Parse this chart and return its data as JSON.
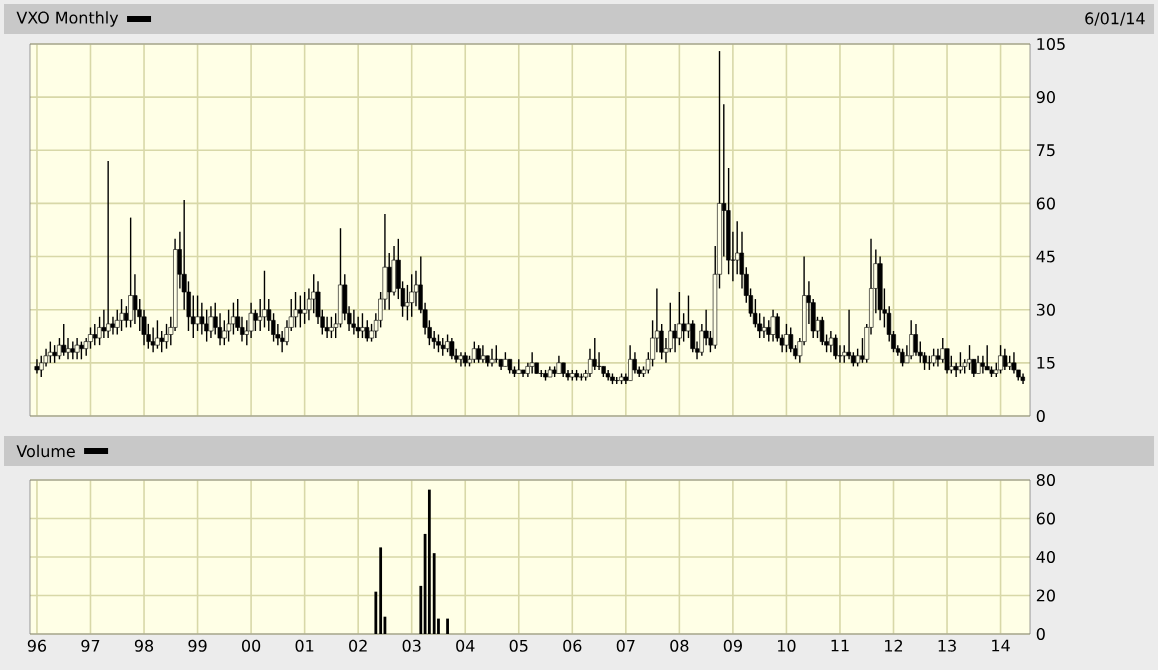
{
  "chart_data": [
    {
      "type": "candlestick",
      "annotations": [
        "6/01/14"
      ],
      "legend": "top left",
      "grid": true,
      "tick_labels": "y",
      "series": [
        {
          "name": "VXO Monthly",
          "color": "#000000",
          "x": [
            "1996-01",
            "1996-02",
            "1996-03",
            "1996-04",
            "1996-05",
            "1996-06",
            "1996-07",
            "1996-08",
            "1996-09",
            "1996-10",
            "1996-11",
            "1996-12",
            "1997-01",
            "1997-02",
            "1997-03",
            "1997-04",
            "1997-05",
            "1997-06",
            "1997-07",
            "1997-08",
            "1997-09",
            "1997-10",
            "1997-11",
            "1997-12",
            "1998-01",
            "1998-02",
            "1998-03",
            "1998-04",
            "1998-05",
            "1998-06",
            "1998-07",
            "1998-08",
            "1998-09",
            "1998-10",
            "1998-11",
            "1998-12",
            "1999-01",
            "1999-02",
            "1999-03",
            "1999-04",
            "1999-05",
            "1999-06",
            "1999-07",
            "1999-08",
            "1999-09",
            "1999-10",
            "1999-11",
            "1999-12",
            "2000-01",
            "2000-02",
            "2000-03",
            "2000-04",
            "2000-05",
            "2000-06",
            "2000-07",
            "2000-08",
            "2000-09",
            "2000-10",
            "2000-11",
            "2000-12",
            "2001-01",
            "2001-02",
            "2001-03",
            "2001-04",
            "2001-05",
            "2001-06",
            "2001-07",
            "2001-08",
            "2001-09",
            "2001-10",
            "2001-11",
            "2001-12",
            "2002-01",
            "2002-02",
            "2002-03",
            "2002-04",
            "2002-05",
            "2002-06",
            "2002-07",
            "2002-08",
            "2002-09",
            "2002-10",
            "2002-11",
            "2002-12",
            "2003-01",
            "2003-02",
            "2003-03",
            "2003-04",
            "2003-05",
            "2003-06",
            "2003-07",
            "2003-08",
            "2003-09",
            "2003-10",
            "2003-11",
            "2003-12",
            "2004-01",
            "2004-02",
            "2004-03",
            "2004-04",
            "2004-05",
            "2004-06",
            "2004-07",
            "2004-08",
            "2004-09",
            "2004-10",
            "2004-11",
            "2004-12",
            "2005-01",
            "2005-02",
            "2005-03",
            "2005-04",
            "2005-05",
            "2005-06",
            "2005-07",
            "2005-08",
            "2005-09",
            "2005-10",
            "2005-11",
            "2005-12",
            "2006-01",
            "2006-02",
            "2006-03",
            "2006-04",
            "2006-05",
            "2006-06",
            "2006-07",
            "2006-08",
            "2006-09",
            "2006-10",
            "2006-11",
            "2006-12",
            "2007-01",
            "2007-02",
            "2007-03",
            "2007-04",
            "2007-05",
            "2007-06",
            "2007-07",
            "2007-08",
            "2007-09",
            "2007-10",
            "2007-11",
            "2007-12",
            "2008-01",
            "2008-02",
            "2008-03",
            "2008-04",
            "2008-05",
            "2008-06",
            "2008-07",
            "2008-08",
            "2008-09",
            "2008-10",
            "2008-11",
            "2008-12",
            "2009-01",
            "2009-02",
            "2009-03",
            "2009-04",
            "2009-05",
            "2009-06",
            "2009-07",
            "2009-08",
            "2009-09",
            "2009-10",
            "2009-11",
            "2009-12",
            "2010-01",
            "2010-02",
            "2010-03",
            "2010-04",
            "2010-05",
            "2010-06",
            "2010-07",
            "2010-08",
            "2010-09",
            "2010-10",
            "2010-11",
            "2010-12",
            "2011-01",
            "2011-02",
            "2011-03",
            "2011-04",
            "2011-05",
            "2011-06",
            "2011-07",
            "2011-08",
            "2011-09",
            "2011-10",
            "2011-11",
            "2011-12",
            "2012-01",
            "2012-02",
            "2012-03",
            "2012-04",
            "2012-05",
            "2012-06",
            "2012-07",
            "2012-08",
            "2012-09",
            "2012-10",
            "2012-11",
            "2012-12",
            "2013-01",
            "2013-02",
            "2013-03",
            "2013-04",
            "2013-05",
            "2013-06",
            "2013-07",
            "2013-08",
            "2013-09",
            "2013-10",
            "2013-11",
            "2013-12",
            "2014-01",
            "2014-02",
            "2014-03",
            "2014-04",
            "2014-05",
            "2014-06"
          ],
          "ohlc": [
            [
              14,
              16,
              12,
              13
            ],
            [
              13,
              17,
              11,
              15
            ],
            [
              15,
              19,
              14,
              17
            ],
            [
              17,
              21,
              15,
              18
            ],
            [
              18,
              20,
              15,
              17
            ],
            [
              17,
              22,
              16,
              20
            ],
            [
              20,
              26,
              17,
              18
            ],
            [
              18,
              22,
              16,
              19
            ],
            [
              19,
              21,
              16,
              18
            ],
            [
              18,
              22,
              16,
              20
            ],
            [
              20,
              21,
              16,
              19
            ],
            [
              19,
              22,
              17,
              21
            ],
            [
              21,
              25,
              19,
              23
            ],
            [
              23,
              26,
              20,
              22
            ],
            [
              22,
              28,
              20,
              25
            ],
            [
              25,
              30,
              22,
              24
            ],
            [
              24,
              72,
              22,
              26
            ],
            [
              26,
              28,
              23,
              25
            ],
            [
              25,
              30,
              23,
              27
            ],
            [
              27,
              33,
              24,
              29
            ],
            [
              29,
              31,
              25,
              27
            ],
            [
              27,
              56,
              25,
              34
            ],
            [
              34,
              40,
              26,
              30
            ],
            [
              30,
              33,
              24,
              28
            ],
            [
              28,
              30,
              20,
              23
            ],
            [
              23,
              26,
              19,
              21
            ],
            [
              21,
              25,
              18,
              20
            ],
            [
              20,
              27,
              19,
              22
            ],
            [
              22,
              24,
              18,
              21
            ],
            [
              21,
              26,
              19,
              23
            ],
            [
              23,
              28,
              20,
              25
            ],
            [
              25,
              50,
              24,
              47
            ],
            [
              47,
              52,
              36,
              40
            ],
            [
              40,
              61,
              30,
              35
            ],
            [
              35,
              38,
              24,
              28
            ],
            [
              28,
              34,
              22,
              26
            ],
            [
              26,
              34,
              24,
              28
            ],
            [
              28,
              32,
              23,
              26
            ],
            [
              26,
              30,
              21,
              24
            ],
            [
              24,
              31,
              22,
              28
            ],
            [
              28,
              32,
              23,
              25
            ],
            [
              25,
              29,
              20,
              22
            ],
            [
              22,
              27,
              20,
              24
            ],
            [
              24,
              30,
              21,
              26
            ],
            [
              26,
              32,
              23,
              28
            ],
            [
              28,
              33,
              24,
              25
            ],
            [
              25,
              28,
              21,
              23
            ],
            [
              23,
              27,
              20,
              24
            ],
            [
              24,
              32,
              22,
              29
            ],
            [
              29,
              30,
              24,
              27
            ],
            [
              27,
              33,
              24,
              28
            ],
            [
              28,
              41,
              25,
              30
            ],
            [
              30,
              33,
              24,
              27
            ],
            [
              27,
              29,
              21,
              23
            ],
            [
              23,
              26,
              20,
              22
            ],
            [
              22,
              24,
              18,
              21
            ],
            [
              21,
              27,
              20,
              25
            ],
            [
              25,
              33,
              24,
              28
            ],
            [
              28,
              35,
              25,
              30
            ],
            [
              30,
              34,
              25,
              29
            ],
            [
              29,
              35,
              26,
              30
            ],
            [
              30,
              36,
              27,
              33
            ],
            [
              33,
              40,
              29,
              35
            ],
            [
              35,
              38,
              26,
              28
            ],
            [
              28,
              30,
              23,
              25
            ],
            [
              25,
              28,
              22,
              24
            ],
            [
              24,
              28,
              22,
              25
            ],
            [
              25,
              29,
              22,
              26
            ],
            [
              26,
              53,
              25,
              37
            ],
            [
              37,
              40,
              27,
              29
            ],
            [
              29,
              31,
              24,
              26
            ],
            [
              26,
              30,
              23,
              25
            ],
            [
              25,
              28,
              22,
              24
            ],
            [
              24,
              29,
              22,
              25
            ],
            [
              25,
              27,
              21,
              22
            ],
            [
              22,
              26,
              21,
              24
            ],
            [
              24,
              29,
              22,
              27
            ],
            [
              27,
              35,
              25,
              33
            ],
            [
              33,
              57,
              30,
              42
            ],
            [
              42,
              46,
              30,
              35
            ],
            [
              35,
              48,
              34,
              44
            ],
            [
              44,
              50,
              33,
              36
            ],
            [
              36,
              38,
              28,
              31
            ],
            [
              31,
              37,
              27,
              32
            ],
            [
              32,
              40,
              28,
              35
            ],
            [
              35,
              41,
              31,
              37
            ],
            [
              37,
              45,
              29,
              30
            ],
            [
              30,
              32,
              23,
              25
            ],
            [
              25,
              27,
              20,
              22
            ],
            [
              22,
              24,
              19,
              21
            ],
            [
              21,
              23,
              18,
              20
            ],
            [
              20,
              22,
              17,
              19
            ],
            [
              19,
              23,
              18,
              21
            ],
            [
              21,
              22,
              16,
              17
            ],
            [
              17,
              19,
              15,
              16
            ],
            [
              16,
              18,
              14,
              17
            ],
            [
              17,
              18,
              14,
              15
            ],
            [
              15,
              17,
              14,
              16
            ],
            [
              16,
              21,
              15,
              19
            ],
            [
              19,
              20,
              15,
              16
            ],
            [
              16,
              20,
              15,
              17
            ],
            [
              17,
              17,
              14,
              15
            ],
            [
              15,
              19,
              14,
              16
            ],
            [
              16,
              20,
              15,
              16
            ],
            [
              16,
              16,
              13,
              14
            ],
            [
              14,
              18,
              14,
              16
            ],
            [
              16,
              16,
              12,
              13
            ],
            [
              13,
              14,
              11,
              12
            ],
            [
              12,
              16,
              12,
              13
            ],
            [
              13,
              13,
              11,
              12
            ],
            [
              12,
              15,
              11,
              14
            ],
            [
              14,
              18,
              12,
              15
            ],
            [
              15,
              15,
              12,
              12
            ],
            [
              12,
              13,
              11,
              12
            ],
            [
              12,
              13,
              10,
              11
            ],
            [
              11,
              14,
              11,
              13
            ],
            [
              13,
              14,
              11,
              12
            ],
            [
              12,
              17,
              12,
              15
            ],
            [
              15,
              15,
              11,
              12
            ],
            [
              12,
              13,
              10,
              11
            ],
            [
              11,
              13,
              10,
              12
            ],
            [
              12,
              13,
              10,
              11
            ],
            [
              11,
              12,
              10,
              11
            ],
            [
              11,
              13,
              10,
              12
            ],
            [
              12,
              19,
              11,
              16
            ],
            [
              16,
              22,
              13,
              14
            ],
            [
              14,
              18,
              13,
              14
            ],
            [
              14,
              14,
              11,
              12
            ],
            [
              12,
              13,
              10,
              11
            ],
            [
              11,
              12,
              9,
              10
            ],
            [
              10,
              11,
              9,
              10
            ],
            [
              10,
              12,
              9,
              11
            ],
            [
              11,
              12,
              9,
              10
            ],
            [
              10,
              20,
              10,
              16
            ],
            [
              16,
              18,
              12,
              13
            ],
            [
              13,
              14,
              11,
              12
            ],
            [
              12,
              14,
              11,
              13
            ],
            [
              13,
              18,
              12,
              16
            ],
            [
              16,
              27,
              14,
              22
            ],
            [
              22,
              36,
              18,
              24
            ],
            [
              24,
              26,
              16,
              18
            ],
            [
              18,
              22,
              15,
              19
            ],
            [
              19,
              32,
              18,
              24
            ],
            [
              24,
              26,
              18,
              22
            ],
            [
              22,
              35,
              20,
              26
            ],
            [
              26,
              29,
              21,
              24
            ],
            [
              24,
              34,
              22,
              26
            ],
            [
              26,
              27,
              18,
              19
            ],
            [
              19,
              21,
              16,
              18
            ],
            [
              18,
              26,
              17,
              24
            ],
            [
              24,
              30,
              20,
              22
            ],
            [
              22,
              24,
              18,
              20
            ],
            [
              20,
              48,
              19,
              40
            ],
            [
              40,
              103,
              36,
              60
            ],
            [
              60,
              88,
              45,
              58
            ],
            [
              58,
              70,
              40,
              44
            ],
            [
              44,
              52,
              38,
              44
            ],
            [
              44,
              55,
              40,
              46
            ],
            [
              46,
              52,
              36,
              40
            ],
            [
              40,
              42,
              32,
              34
            ],
            [
              34,
              36,
              28,
              29
            ],
            [
              29,
              33,
              25,
              26
            ],
            [
              26,
              29,
              22,
              24
            ],
            [
              24,
              28,
              22,
              25
            ],
            [
              25,
              27,
              21,
              23
            ],
            [
              23,
              30,
              21,
              28
            ],
            [
              28,
              29,
              21,
              22
            ],
            [
              22,
              23,
              18,
              20
            ],
            [
              20,
              26,
              18,
              23
            ],
            [
              23,
              25,
              18,
              19
            ],
            [
              19,
              20,
              16,
              17
            ],
            [
              17,
              22,
              15,
              21
            ],
            [
              21,
              45,
              20,
              34
            ],
            [
              34,
              38,
              26,
              32
            ],
            [
              32,
              33,
              22,
              24
            ],
            [
              24,
              28,
              22,
              27
            ],
            [
              27,
              28,
              20,
              21
            ],
            [
              21,
              23,
              18,
              20
            ],
            [
              20,
              24,
              18,
              22
            ],
            [
              22,
              23,
              16,
              17
            ],
            [
              17,
              20,
              15,
              17
            ],
            [
              17,
              20,
              15,
              18
            ],
            [
              18,
              30,
              16,
              17
            ],
            [
              17,
              18,
              14,
              15
            ],
            [
              15,
              19,
              14,
              17
            ],
            [
              17,
              22,
              15,
              16
            ],
            [
              16,
              26,
              15,
              25
            ],
            [
              25,
              50,
              23,
              36
            ],
            [
              36,
              47,
              29,
              43
            ],
            [
              43,
              45,
              27,
              30
            ],
            [
              30,
              36,
              25,
              29
            ],
            [
              29,
              31,
              21,
              23
            ],
            [
              23,
              24,
              18,
              19
            ],
            [
              19,
              20,
              17,
              18
            ],
            [
              18,
              19,
              14,
              15
            ],
            [
              15,
              20,
              15,
              17
            ],
            [
              17,
              27,
              16,
              23
            ],
            [
              23,
              26,
              17,
              18
            ],
            [
              18,
              21,
              15,
              17
            ],
            [
              17,
              18,
              13,
              15
            ],
            [
              15,
              17,
              13,
              15
            ],
            [
              15,
              19,
              14,
              17
            ],
            [
              17,
              19,
              14,
              16
            ],
            [
              16,
              22,
              15,
              19
            ],
            [
              19,
              19,
              12,
              13
            ],
            [
              13,
              17,
              12,
              14
            ],
            [
              14,
              15,
              11,
              13
            ],
            [
              13,
              18,
              12,
              14
            ],
            [
              14,
              16,
              12,
              15
            ],
            [
              15,
              20,
              13,
              16
            ],
            [
              16,
              16,
              11,
              12
            ],
            [
              12,
              17,
              12,
              15
            ],
            [
              15,
              17,
              12,
              14
            ],
            [
              14,
              20,
              13,
              13
            ],
            [
              13,
              14,
              11,
              12
            ],
            [
              12,
              15,
              11,
              13
            ],
            [
              13,
              20,
              12,
              17
            ],
            [
              17,
              19,
              13,
              14
            ],
            [
              14,
              17,
              13,
              15
            ],
            [
              15,
              18,
              12,
              13
            ],
            [
              13,
              13,
              10,
              11
            ],
            [
              11,
              12,
              9,
              10
            ]
          ]
        }
      ],
      "xlim": [
        "1995-11-15",
        "2014-07-20"
      ],
      "ylim": [
        0,
        105
      ],
      "yticks": [
        0,
        15,
        30,
        45,
        60,
        75,
        90,
        105
      ],
      "xticks": [
        {
          "value": "1996-01",
          "label": null
        },
        {
          "value": "1997-01",
          "label": null
        },
        {
          "value": "1998-01",
          "label": null
        },
        {
          "value": "1999-01",
          "label": null
        },
        {
          "value": "2000-01",
          "label": null
        },
        {
          "value": "2001-01",
          "label": null
        },
        {
          "value": "2002-01",
          "label": null
        },
        {
          "value": "2003-01",
          "label": null
        },
        {
          "value": "2004-01",
          "label": null
        },
        {
          "value": "2005-01",
          "label": null
        },
        {
          "value": "2006-01",
          "label": null
        },
        {
          "value": "2007-01",
          "label": null
        },
        {
          "value": "2008-01",
          "label": null
        },
        {
          "value": "2009-01",
          "label": null
        },
        {
          "value": "2010-01",
          "label": null
        },
        {
          "value": "2011-01",
          "label": null
        },
        {
          "value": "2012-01",
          "label": null
        },
        {
          "value": "2013-01",
          "label": null
        },
        {
          "value": "2014-01",
          "label": null
        }
      ]
    },
    {
      "type": "bar",
      "legend": "top left",
      "grid": true,
      "series": [
        {
          "name": "Volume",
          "color": "#000000",
          "x": [
            "2002-05",
            "2002-06",
            "2002-07",
            "2003-03",
            "2003-04",
            "2003-05",
            "2003-06",
            "2003-07",
            "2003-09"
          ],
          "values": [
            22,
            45,
            9,
            25,
            52,
            75,
            42,
            8,
            8
          ]
        }
      ],
      "xlim": [
        "1995-11-15",
        "2014-07-20"
      ],
      "ylim": [
        0,
        80
      ],
      "yticks": [
        0,
        20,
        40,
        60,
        80
      ],
      "xticks": [
        {
          "value": "1996-01",
          "label": "96"
        },
        {
          "value": "1997-01",
          "label": "97"
        },
        {
          "value": "1998-01",
          "label": "98"
        },
        {
          "value": "1999-01",
          "label": "99"
        },
        {
          "value": "2000-01",
          "label": "00"
        },
        {
          "value": "2001-01",
          "label": "01"
        },
        {
          "value": "2002-01",
          "label": "02"
        },
        {
          "value": "2003-01",
          "label": "03"
        },
        {
          "value": "2004-01",
          "label": "04"
        },
        {
          "value": "2005-01",
          "label": "05"
        },
        {
          "value": "2006-01",
          "label": "06"
        },
        {
          "value": "2007-01",
          "label": "07"
        },
        {
          "value": "2008-01",
          "label": "08"
        },
        {
          "value": "2009-01",
          "label": "09"
        },
        {
          "value": "2010-01",
          "label": "10"
        },
        {
          "value": "2011-01",
          "label": "11"
        },
        {
          "value": "2012-01",
          "label": "12"
        },
        {
          "value": "2013-01",
          "label": "13"
        },
        {
          "value": "2014-01",
          "label": "14"
        }
      ]
    }
  ]
}
